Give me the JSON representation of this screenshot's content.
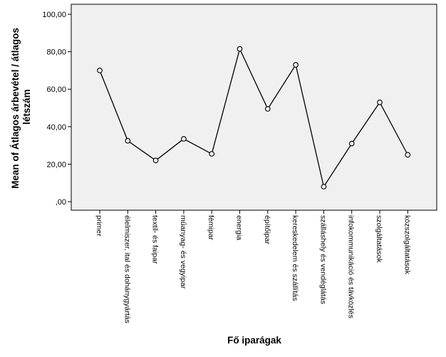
{
  "chart_data": {
    "type": "line",
    "xlabel": "Fő iparágak",
    "ylabel_lines": [
      "Mean of Átlagos árbevétel / átlagos",
      "létszám"
    ],
    "ylim": [
      0,
      100
    ],
    "yticks": [
      0,
      20,
      40,
      60,
      80,
      100
    ],
    "ytick_labels": [
      ",00",
      "20,00",
      "40,00",
      "60,00",
      "80,00",
      "100,00"
    ],
    "grid": false,
    "categories": [
      "primer",
      "élelmiszer, ital és dohánygyártás",
      "textil- és faipar",
      "műanyag- és vegyipar",
      "fémipar",
      "energia",
      "építőipar",
      "kereskedelem és szállítás",
      "szálláshely és vendéglátás",
      "infokommunikáció és távközlés",
      "szolgáltatások",
      "közszolgáltatások"
    ],
    "values": [
      70.0,
      32.5,
      22.0,
      33.5,
      25.5,
      81.5,
      49.5,
      73.0,
      8.0,
      31.0,
      53.0,
      25.0
    ],
    "colors": {
      "plot_background": "#f0f0f0",
      "line": "#000000",
      "marker": "#000000"
    }
  }
}
